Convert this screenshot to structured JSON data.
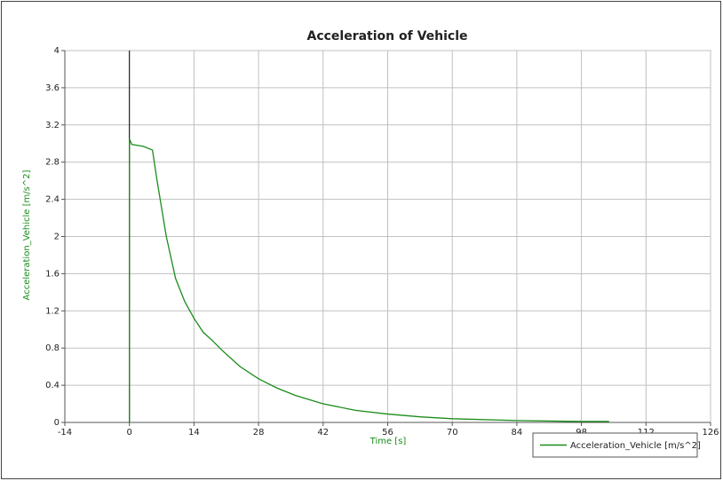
{
  "chart_data": {
    "type": "line",
    "title": "Acceleration of Vehicle",
    "x_label": "Time [s]",
    "y_label": "Acceleration_Vehicle [m/s^2]",
    "x": [
      0,
      0,
      0.5,
      3,
      5,
      6,
      7,
      8,
      10,
      12,
      14,
      16,
      18,
      20,
      24,
      28,
      32,
      36,
      42,
      49,
      56,
      63,
      70,
      84,
      98,
      104
    ],
    "series": [
      {
        "name": "Acceleration_Vehicle [m/s^2]",
        "color": "#1a8c1a",
        "values": [
          0,
          3.05,
          2.99,
          2.97,
          2.93,
          2.6,
          2.3,
          2.0,
          1.55,
          1.3,
          1.12,
          0.97,
          0.88,
          0.78,
          0.6,
          0.47,
          0.37,
          0.29,
          0.2,
          0.13,
          0.09,
          0.06,
          0.04,
          0.02,
          0.01,
          0.01
        ]
      }
    ],
    "xlim": [
      -14,
      126
    ],
    "xticks": [
      -14,
      0,
      14,
      28,
      42,
      56,
      70,
      84,
      98,
      112,
      126
    ],
    "ylim": [
      0,
      4
    ],
    "yticks": [
      0,
      0.4,
      0.8,
      1.2,
      1.6,
      2,
      2.4,
      2.8,
      3.2,
      3.6,
      4
    ],
    "grid": true,
    "legend": "lower right"
  }
}
